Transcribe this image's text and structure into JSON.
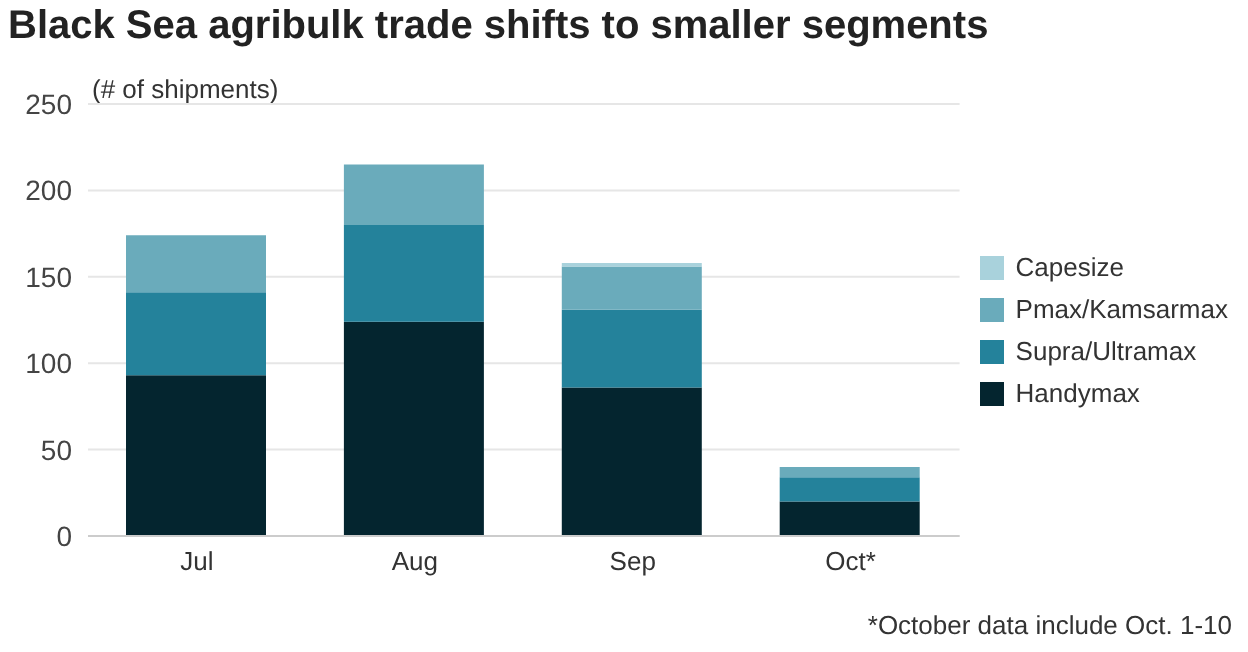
{
  "chart_data": {
    "type": "bar",
    "title": "Black Sea agribulk trade shifts to smaller segments",
    "ylabel": "(# of shipments)",
    "categories": [
      "Jul",
      "Aug",
      "Sep",
      "Oct*"
    ],
    "stacked": true,
    "series": [
      {
        "name": "Handymax",
        "color": "#04252f",
        "values": [
          93,
          124,
          86,
          20
        ]
      },
      {
        "name": "Supra/Ultramax",
        "color": "#24829b",
        "values": [
          48,
          56,
          45,
          14
        ]
      },
      {
        "name": "Pmax/Kamsarmax",
        "color": "#6aabbb",
        "values": [
          33,
          35,
          25,
          6
        ]
      },
      {
        "name": "Capesize",
        "color": "#a9d2dc",
        "values": [
          null,
          null,
          2,
          0
        ]
      }
    ],
    "ylim": [
      0,
      250
    ],
    "yticks": [
      0,
      50,
      100,
      150,
      200,
      250
    ],
    "grid": "y",
    "legend": "right",
    "annotations": [
      "*October data include Oct. 1-10"
    ]
  }
}
